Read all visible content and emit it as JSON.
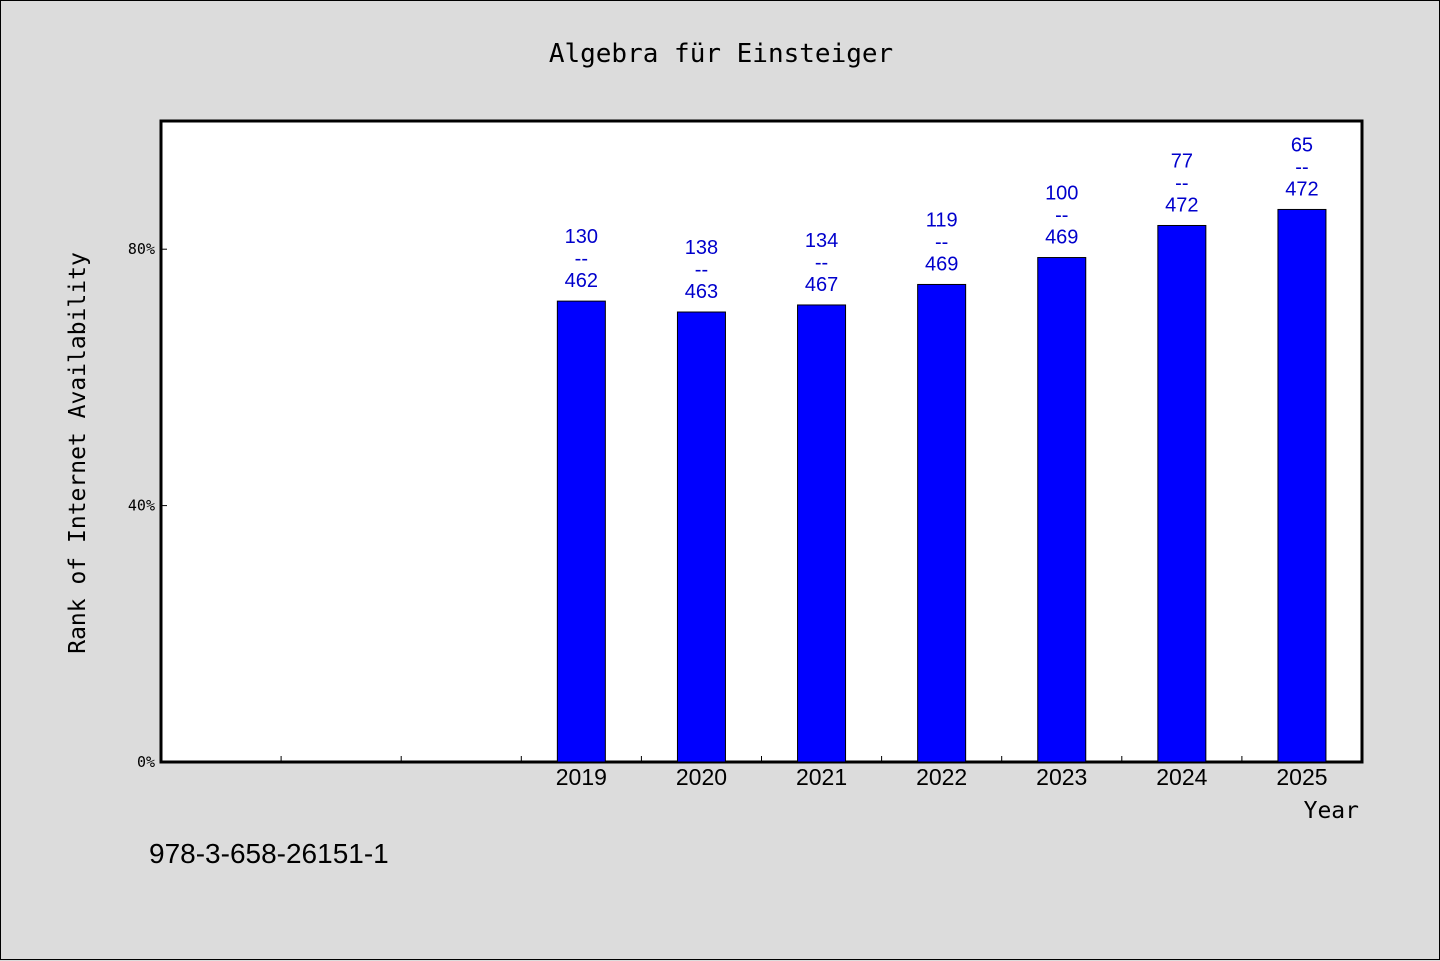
{
  "chart_data": {
    "type": "bar",
    "title": "Algebra für Einsteiger",
    "xlabel": "Year",
    "ylabel": "Rank of Internet Availability",
    "categories": [
      "",
      "",
      "",
      "2019",
      "2020",
      "2021",
      "2022",
      "2023",
      "2024",
      "2025"
    ],
    "values": [
      null,
      null,
      null,
      71.9,
      70.2,
      71.3,
      74.5,
      78.7,
      83.7,
      86.2
    ],
    "data_labels": [
      null,
      null,
      null,
      [
        "130",
        "--",
        "462"
      ],
      [
        "138",
        "--",
        "463"
      ],
      [
        "134",
        "--",
        "467"
      ],
      [
        "119",
        "--",
        "469"
      ],
      [
        "100",
        "--",
        "469"
      ],
      [
        "77",
        "--",
        "472"
      ],
      [
        "65",
        "--",
        "472"
      ]
    ],
    "yticks": [
      {
        "value": 0,
        "label": "0%"
      },
      {
        "value": 40,
        "label": "40%"
      },
      {
        "value": 80,
        "label": "80%"
      }
    ],
    "ylim": [
      0,
      100
    ],
    "grid": false,
    "legend": "none",
    "bar_color": "#0000ff",
    "label_color": "#0000cc",
    "plot_background": "#ffffff",
    "figure_background": "#dcdcdc"
  },
  "footer": {
    "isbn": "978-3-658-26151-1"
  }
}
